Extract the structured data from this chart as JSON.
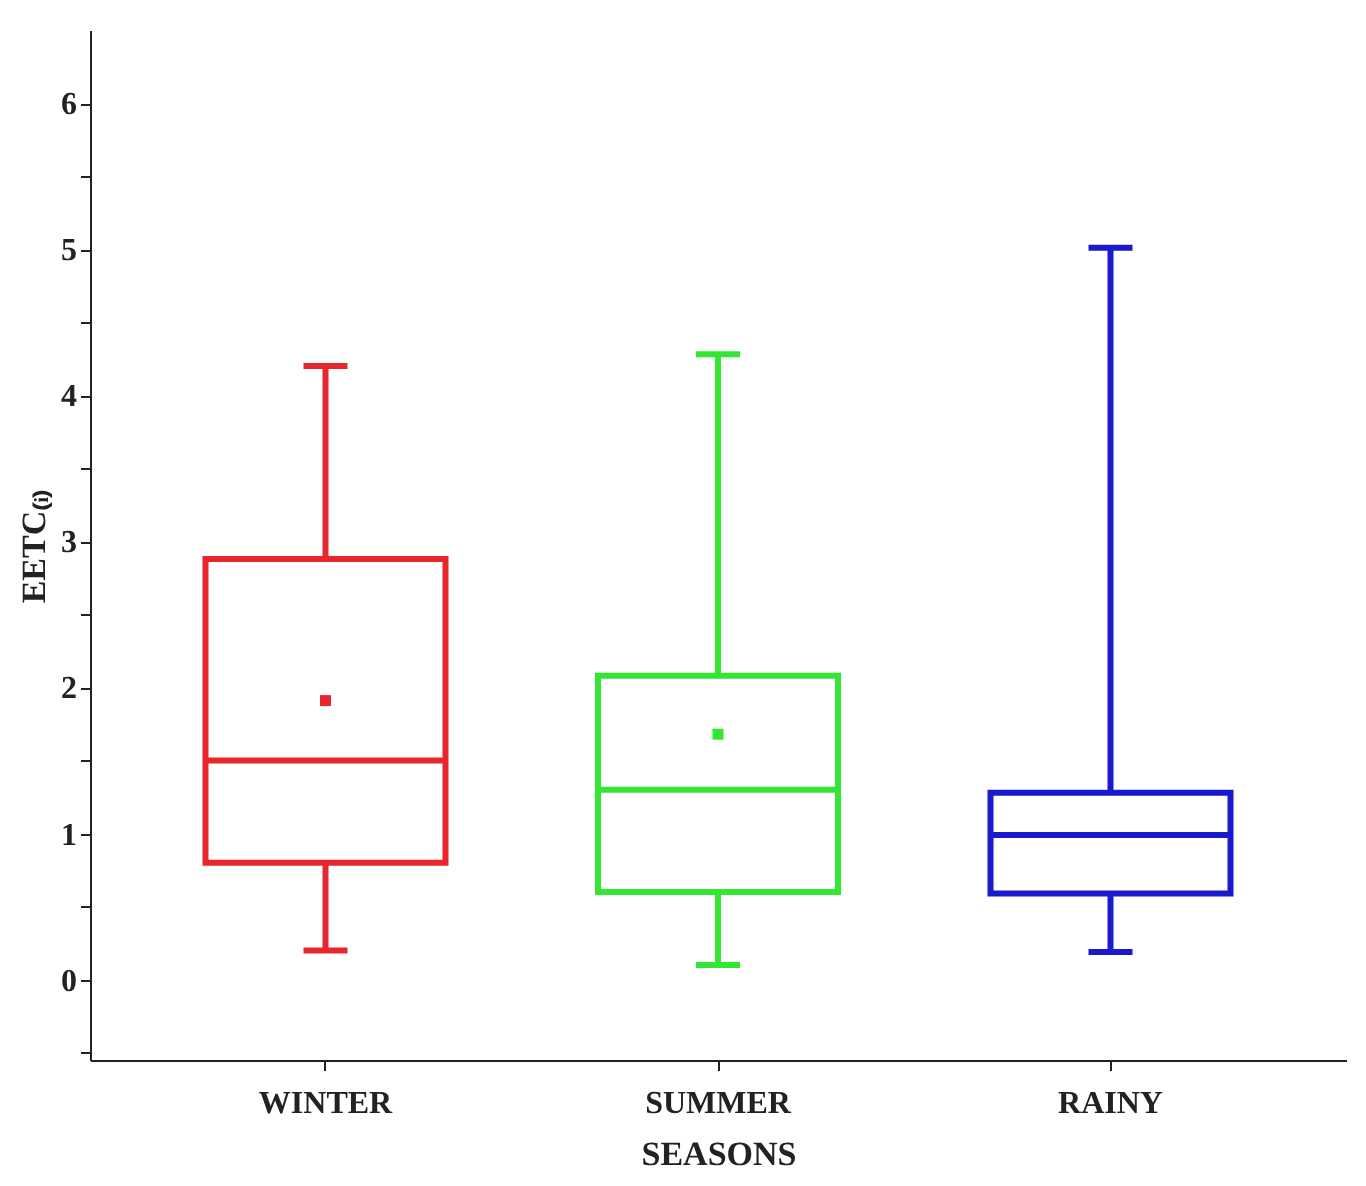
{
  "chart_data": {
    "type": "box",
    "xlabel": "SEASONS",
    "ylabel": "EETC₍ᵢ₎",
    "categories": [
      "WINTER",
      "SUMMER",
      "RAINY"
    ],
    "colors": [
      "#e8262b",
      "#33e633",
      "#1a1acc"
    ],
    "boxes": [
      {
        "low": 0.2,
        "q1": 0.8,
        "median": 1.5,
        "q3": 2.88,
        "high": 4.2,
        "mean": 1.91
      },
      {
        "low": 0.1,
        "q1": 0.6,
        "median": 1.3,
        "q3": 2.08,
        "high": 4.28,
        "mean": 1.68
      },
      {
        "low": 0.19,
        "q1": 0.59,
        "median": 0.99,
        "q3": 1.28,
        "high": 5.01
      }
    ],
    "ylim": [
      -0.55,
      6.5
    ],
    "yticks": [
      {
        "value": -0.5,
        "label": null
      },
      0,
      {
        "value": 0.5,
        "label": null
      },
      1,
      {
        "value": 1.5,
        "label": null
      },
      2,
      {
        "value": 2.5,
        "label": null
      },
      3,
      {
        "value": 3.5,
        "label": null
      },
      4,
      {
        "value": 4.5,
        "label": null
      },
      5,
      {
        "value": 5.5,
        "label": null
      },
      6
    ],
    "grid": false,
    "legend": false
  }
}
